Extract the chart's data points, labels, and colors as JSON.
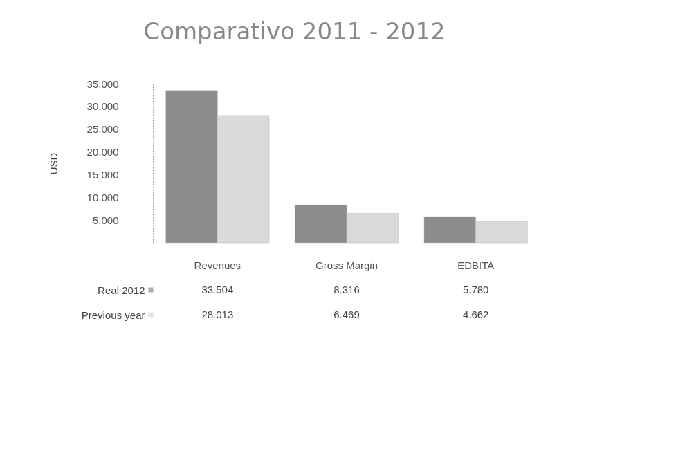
{
  "chart_data": {
    "type": "bar",
    "title": "Comparativo 2011 - 2012",
    "ylabel": "USD",
    "categories": [
      "Revenues",
      "Gross Margin",
      "EDBITA"
    ],
    "series": [
      {
        "name": "Real 2012",
        "color": "#8c8c8c",
        "values": [
          33504,
          8316,
          5780
        ],
        "value_labels": [
          "33.504",
          "8.316",
          "5.780"
        ]
      },
      {
        "name": "Previous year",
        "color": "#d9d9d9",
        "values": [
          28013,
          6469,
          4662
        ],
        "value_labels": [
          "28.013",
          "6.469",
          "4.662"
        ]
      }
    ],
    "ylim": [
      0,
      35000
    ],
    "yticks": [
      {
        "value": 5000,
        "label": "5.000"
      },
      {
        "value": 10000,
        "label": "10.000"
      },
      {
        "value": 15000,
        "label": "15.000"
      },
      {
        "value": 20000,
        "label": "20.000"
      },
      {
        "value": 25000,
        "label": "25.000"
      },
      {
        "value": 30000,
        "label": "30.000"
      },
      {
        "value": 35000,
        "label": "35.000"
      }
    ],
    "grid": false,
    "legend": "bottom"
  }
}
